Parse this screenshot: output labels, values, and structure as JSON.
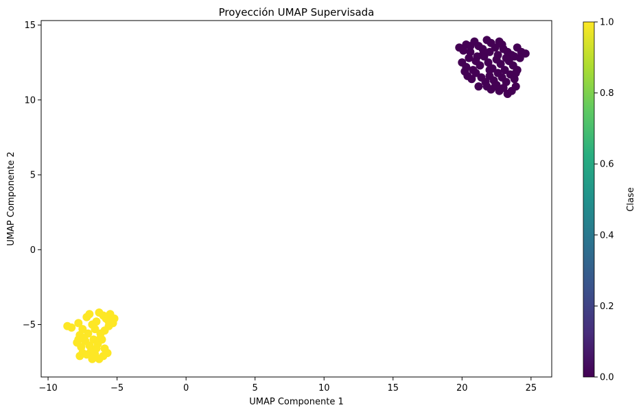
{
  "chart_data": {
    "type": "scatter",
    "title": "Proyección UMAP Supervisada",
    "xlabel": "UMAP Componente 1",
    "ylabel": "UMAP Componente 2",
    "xlim": [
      -10.5,
      26.5
    ],
    "ylim": [
      -8.5,
      15.3
    ],
    "xticks": [
      -10,
      -5,
      0,
      5,
      10,
      15,
      20,
      25
    ],
    "xtick_labels": [
      "−10",
      "−5",
      "0",
      "5",
      "10",
      "15",
      "20",
      "25"
    ],
    "yticks": [
      -5,
      0,
      5,
      10,
      15
    ],
    "ytick_labels": [
      "−5",
      "0",
      "5",
      "10",
      "15"
    ],
    "grid": false,
    "colormap": "viridis",
    "colorbar": {
      "label": "Clase",
      "range": [
        0.0,
        1.0
      ],
      "ticks": [
        0.0,
        0.2,
        0.4,
        0.6,
        0.8,
        1.0
      ],
      "tick_labels": [
        "0.0",
        "0.2",
        "0.4",
        "0.6",
        "0.8",
        "1.0"
      ]
    },
    "series": [
      {
        "class_value": 0.0,
        "color": "#440154",
        "points": [
          [
            19.8,
            13.5
          ],
          [
            20.1,
            13.3
          ],
          [
            20.3,
            13.7
          ],
          [
            20.6,
            13.2
          ],
          [
            20.9,
            13.9
          ],
          [
            21.2,
            13.6
          ],
          [
            21.5,
            13.4
          ],
          [
            21.8,
            14.0
          ],
          [
            22.1,
            13.8
          ],
          [
            22.4,
            13.5
          ],
          [
            22.7,
            13.9
          ],
          [
            23.0,
            13.4
          ],
          [
            23.3,
            13.2
          ],
          [
            23.6,
            13.0
          ],
          [
            24.0,
            13.5
          ],
          [
            24.3,
            13.2
          ],
          [
            24.6,
            13.1
          ],
          [
            24.2,
            12.8
          ],
          [
            23.8,
            12.9
          ],
          [
            20.0,
            12.5
          ],
          [
            20.3,
            12.2
          ],
          [
            20.5,
            12.8
          ],
          [
            20.8,
            12.0
          ],
          [
            21.0,
            12.6
          ],
          [
            21.3,
            12.3
          ],
          [
            21.6,
            12.9
          ],
          [
            21.9,
            12.5
          ],
          [
            22.2,
            12.1
          ],
          [
            22.5,
            12.7
          ],
          [
            22.8,
            12.4
          ],
          [
            23.1,
            12.0
          ],
          [
            23.4,
            12.6
          ],
          [
            23.7,
            12.3
          ],
          [
            24.0,
            12.0
          ],
          [
            20.4,
            11.6
          ],
          [
            20.7,
            11.4
          ],
          [
            21.0,
            11.8
          ],
          [
            21.4,
            11.5
          ],
          [
            21.7,
            11.2
          ],
          [
            22.0,
            11.6
          ],
          [
            22.3,
            11.3
          ],
          [
            22.6,
            11.8
          ],
          [
            22.9,
            11.5
          ],
          [
            23.2,
            11.2
          ],
          [
            23.5,
            11.7
          ],
          [
            23.8,
            11.4
          ],
          [
            21.8,
            10.9
          ],
          [
            22.1,
            10.7
          ],
          [
            22.4,
            10.9
          ],
          [
            22.7,
            10.6
          ],
          [
            23.0,
            10.8
          ],
          [
            23.3,
            10.4
          ],
          [
            23.6,
            10.6
          ],
          [
            23.9,
            10.9
          ],
          [
            21.5,
            13.0
          ],
          [
            22.0,
            13.2
          ],
          [
            22.6,
            13.0
          ],
          [
            21.1,
            12.9
          ],
          [
            23.2,
            12.8
          ],
          [
            22.0,
            12.0
          ],
          [
            22.5,
            11.0
          ],
          [
            20.2,
            11.9
          ],
          [
            21.2,
            10.9
          ],
          [
            23.9,
            11.8
          ],
          [
            20.6,
            13.6
          ],
          [
            22.9,
            13.7
          ]
        ]
      },
      {
        "class_value": 1.0,
        "color": "#fde725",
        "points": [
          [
            -8.6,
            -5.1
          ],
          [
            -8.3,
            -5.2
          ],
          [
            -7.8,
            -4.9
          ],
          [
            -7.5,
            -5.3
          ],
          [
            -7.2,
            -4.5
          ],
          [
            -7.0,
            -4.3
          ],
          [
            -6.8,
            -5.0
          ],
          [
            -6.5,
            -4.8
          ],
          [
            -6.3,
            -4.2
          ],
          [
            -6.0,
            -4.4
          ],
          [
            -5.8,
            -4.6
          ],
          [
            -5.5,
            -4.3
          ],
          [
            -5.3,
            -4.9
          ],
          [
            -5.2,
            -4.6
          ],
          [
            -5.6,
            -5.1
          ],
          [
            -5.9,
            -5.4
          ],
          [
            -6.2,
            -5.6
          ],
          [
            -6.6,
            -5.3
          ],
          [
            -7.1,
            -5.6
          ],
          [
            -7.4,
            -5.9
          ],
          [
            -7.7,
            -5.7
          ],
          [
            -7.9,
            -6.2
          ],
          [
            -7.6,
            -6.5
          ],
          [
            -7.3,
            -6.1
          ],
          [
            -7.0,
            -6.4
          ],
          [
            -6.7,
            -6.0
          ],
          [
            -6.4,
            -6.3
          ],
          [
            -6.1,
            -6.0
          ],
          [
            -5.9,
            -6.6
          ],
          [
            -5.7,
            -6.9
          ],
          [
            -6.0,
            -7.1
          ],
          [
            -6.3,
            -7.3
          ],
          [
            -6.6,
            -7.0
          ],
          [
            -6.9,
            -6.8
          ],
          [
            -7.2,
            -7.0
          ],
          [
            -7.5,
            -6.9
          ],
          [
            -7.7,
            -7.1
          ],
          [
            -6.5,
            -6.6
          ],
          [
            -6.8,
            -7.3
          ],
          [
            -6.2,
            -5.9
          ],
          [
            -7.8,
            -6.0
          ],
          [
            -5.6,
            -4.8
          ]
        ]
      }
    ]
  }
}
